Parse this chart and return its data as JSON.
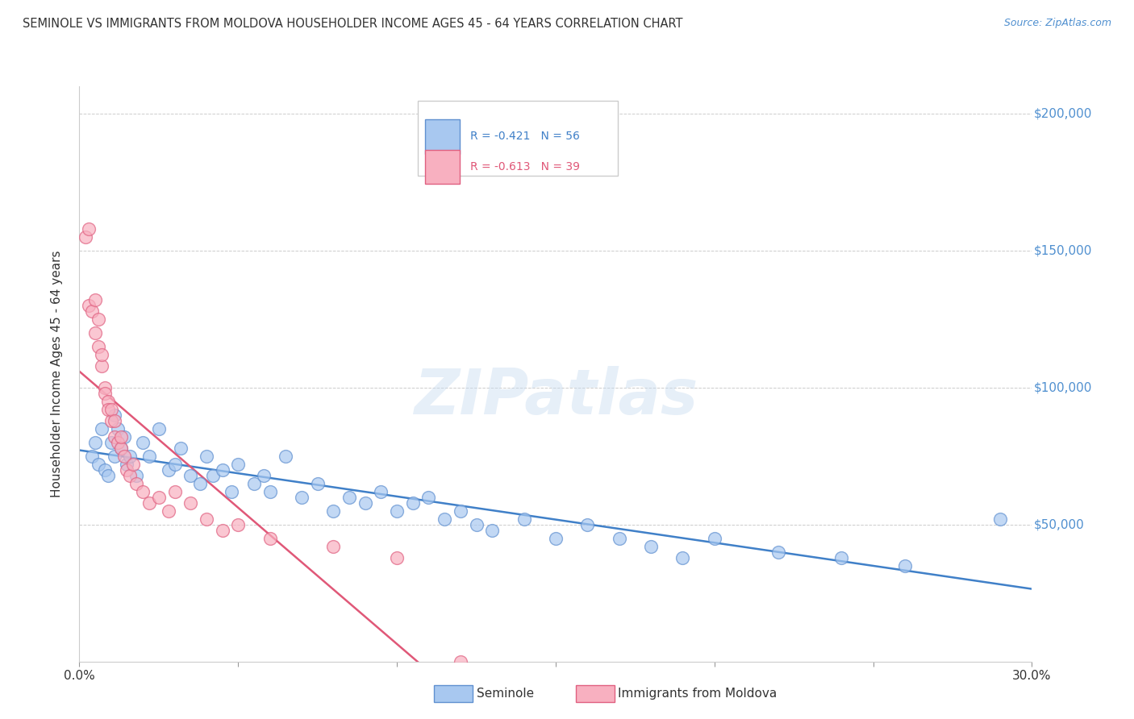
{
  "title": "SEMINOLE VS IMMIGRANTS FROM MOLDOVA HOUSEHOLDER INCOME AGES 45 - 64 YEARS CORRELATION CHART",
  "source": "Source: ZipAtlas.com",
  "ylabel": "Householder Income Ages 45 - 64 years",
  "legend_label1": "Seminole",
  "legend_label2": "Immigrants from Moldova",
  "R1": -0.421,
  "N1": 56,
  "R2": -0.613,
  "N2": 39,
  "xlim": [
    0.0,
    0.3
  ],
  "ylim": [
    0,
    210000
  ],
  "yticks": [
    0,
    50000,
    100000,
    150000,
    200000
  ],
  "ytick_labels_right": [
    "",
    "$50,000",
    "$100,000",
    "$150,000",
    "$200,000"
  ],
  "xticks": [
    0.0,
    0.05,
    0.1,
    0.15,
    0.2,
    0.25,
    0.3
  ],
  "xtick_labels": [
    "0.0%",
    "",
    "",
    "",
    "",
    "",
    "30.0%"
  ],
  "color_seminole": "#a8c8f0",
  "color_moldova": "#f8b0c0",
  "edge_seminole": "#6090d0",
  "edge_moldova": "#e06080",
  "line_color_seminole": "#4080c8",
  "line_color_moldova": "#e05878",
  "background_color": "#ffffff",
  "watermark": "ZIPatlas",
  "seminole_x": [
    0.004,
    0.005,
    0.006,
    0.007,
    0.008,
    0.009,
    0.01,
    0.011,
    0.011,
    0.012,
    0.013,
    0.014,
    0.015,
    0.016,
    0.018,
    0.02,
    0.022,
    0.025,
    0.028,
    0.03,
    0.032,
    0.035,
    0.038,
    0.04,
    0.042,
    0.045,
    0.048,
    0.05,
    0.055,
    0.058,
    0.06,
    0.065,
    0.07,
    0.075,
    0.08,
    0.085,
    0.09,
    0.095,
    0.1,
    0.105,
    0.11,
    0.115,
    0.12,
    0.125,
    0.13,
    0.14,
    0.15,
    0.16,
    0.17,
    0.18,
    0.19,
    0.2,
    0.22,
    0.24,
    0.26,
    0.29
  ],
  "seminole_y": [
    75000,
    80000,
    72000,
    85000,
    70000,
    68000,
    80000,
    75000,
    90000,
    85000,
    78000,
    82000,
    72000,
    75000,
    68000,
    80000,
    75000,
    85000,
    70000,
    72000,
    78000,
    68000,
    65000,
    75000,
    68000,
    70000,
    62000,
    72000,
    65000,
    68000,
    62000,
    75000,
    60000,
    65000,
    55000,
    60000,
    58000,
    62000,
    55000,
    58000,
    60000,
    52000,
    55000,
    50000,
    48000,
    52000,
    45000,
    50000,
    45000,
    42000,
    38000,
    45000,
    40000,
    38000,
    35000,
    52000
  ],
  "moldova_x": [
    0.002,
    0.003,
    0.003,
    0.004,
    0.005,
    0.005,
    0.006,
    0.006,
    0.007,
    0.007,
    0.008,
    0.008,
    0.009,
    0.009,
    0.01,
    0.01,
    0.011,
    0.011,
    0.012,
    0.013,
    0.013,
    0.014,
    0.015,
    0.016,
    0.017,
    0.018,
    0.02,
    0.022,
    0.025,
    0.028,
    0.03,
    0.035,
    0.04,
    0.045,
    0.05,
    0.06,
    0.08,
    0.1,
    0.12
  ],
  "moldova_y": [
    155000,
    158000,
    130000,
    128000,
    120000,
    132000,
    115000,
    125000,
    108000,
    112000,
    100000,
    98000,
    95000,
    92000,
    88000,
    92000,
    82000,
    88000,
    80000,
    78000,
    82000,
    75000,
    70000,
    68000,
    72000,
    65000,
    62000,
    58000,
    60000,
    55000,
    62000,
    58000,
    52000,
    48000,
    50000,
    45000,
    42000,
    38000,
    0
  ]
}
